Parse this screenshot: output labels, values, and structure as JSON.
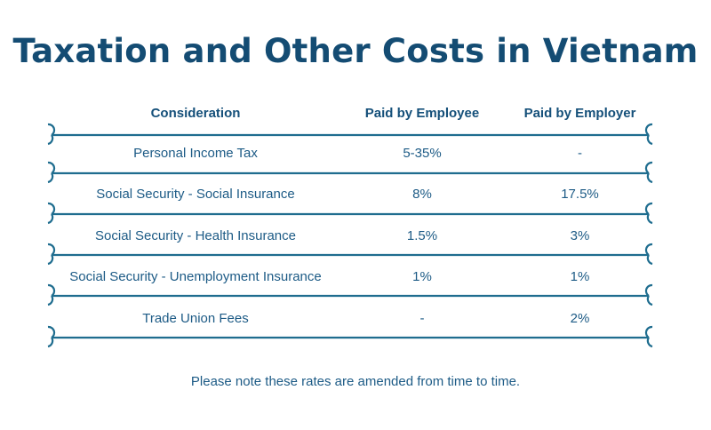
{
  "title": "Taxation and Other Costs in Vietnam",
  "table": {
    "headers": [
      "Consideration",
      "Paid by Employee",
      "Paid by Employer"
    ],
    "rows": [
      {
        "consideration": "Personal Income Tax",
        "employee": "5-35%",
        "employer": "-"
      },
      {
        "consideration": "Social Security - Social Insurance",
        "employee": "8%",
        "employer": "17.5%"
      },
      {
        "consideration": "Social Security - Health Insurance",
        "employee": "1.5%",
        "employer": "3%"
      },
      {
        "consideration": "Social Security - Unemployment Insurance",
        "employee": "1%",
        "employer": "1%"
      },
      {
        "consideration": "Trade Union Fees",
        "employee": "-",
        "employer": "2%"
      }
    ]
  },
  "note": "Please note these rates are amended from time to time.",
  "colors": {
    "title": "#144c73",
    "text": "#1d5b86",
    "rule": "#1f6d8f"
  }
}
